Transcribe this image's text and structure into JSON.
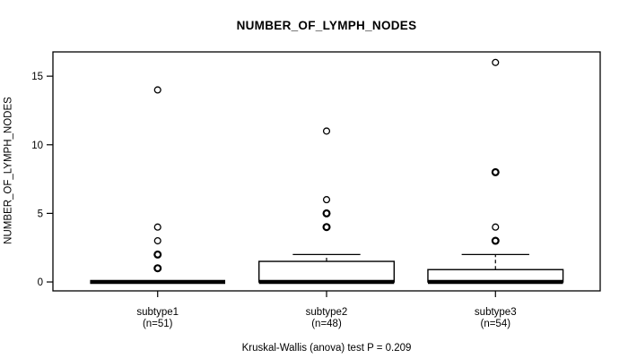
{
  "colors": {
    "line": "#000000",
    "background": "#ffffff",
    "box_fill": "#ffffff"
  },
  "chart_data": {
    "type": "boxplot",
    "title": "NUMBER_OF_LYMPH_NODES",
    "ylabel": "NUMBER_OF_LYMPH_NODES",
    "xlabel": "",
    "caption": "Kruskal-Wallis (anova) test P = 0.209",
    "yticks": [
      0,
      5,
      10,
      15
    ],
    "ylim": [
      -0.65,
      16.77
    ],
    "grid": false,
    "legend": null,
    "groups": [
      {
        "label": "subtype1",
        "n": 51,
        "n_label": "(n=51)",
        "stats": {
          "whisker_low": 0,
          "q1": 0,
          "median": 0,
          "q3": 0,
          "whisker_high": 0
        },
        "outliers": [
          {
            "v": 1,
            "bold": true
          },
          {
            "v": 2,
            "bold": true
          },
          {
            "v": 3,
            "bold": false
          },
          {
            "v": 4,
            "bold": false
          },
          {
            "v": 14,
            "bold": false
          }
        ]
      },
      {
        "label": "subtype2",
        "n": 48,
        "n_label": "(n=48)",
        "stats": {
          "whisker_low": 0,
          "q1": 0,
          "median": 0,
          "q3": 1.5,
          "whisker_high": 2
        },
        "outliers": [
          {
            "v": 4,
            "bold": true
          },
          {
            "v": 5,
            "bold": true
          },
          {
            "v": 6,
            "bold": false
          },
          {
            "v": 11,
            "bold": false
          }
        ]
      },
      {
        "label": "subtype3",
        "n": 54,
        "n_label": "(n=54)",
        "stats": {
          "whisker_low": 0,
          "q1": 0,
          "median": 0,
          "q3": 0.9,
          "whisker_high": 2
        },
        "outliers": [
          {
            "v": 3,
            "bold": true
          },
          {
            "v": 4,
            "bold": false
          },
          {
            "v": 8,
            "bold": true
          },
          {
            "v": 16,
            "bold": false
          }
        ]
      }
    ]
  }
}
